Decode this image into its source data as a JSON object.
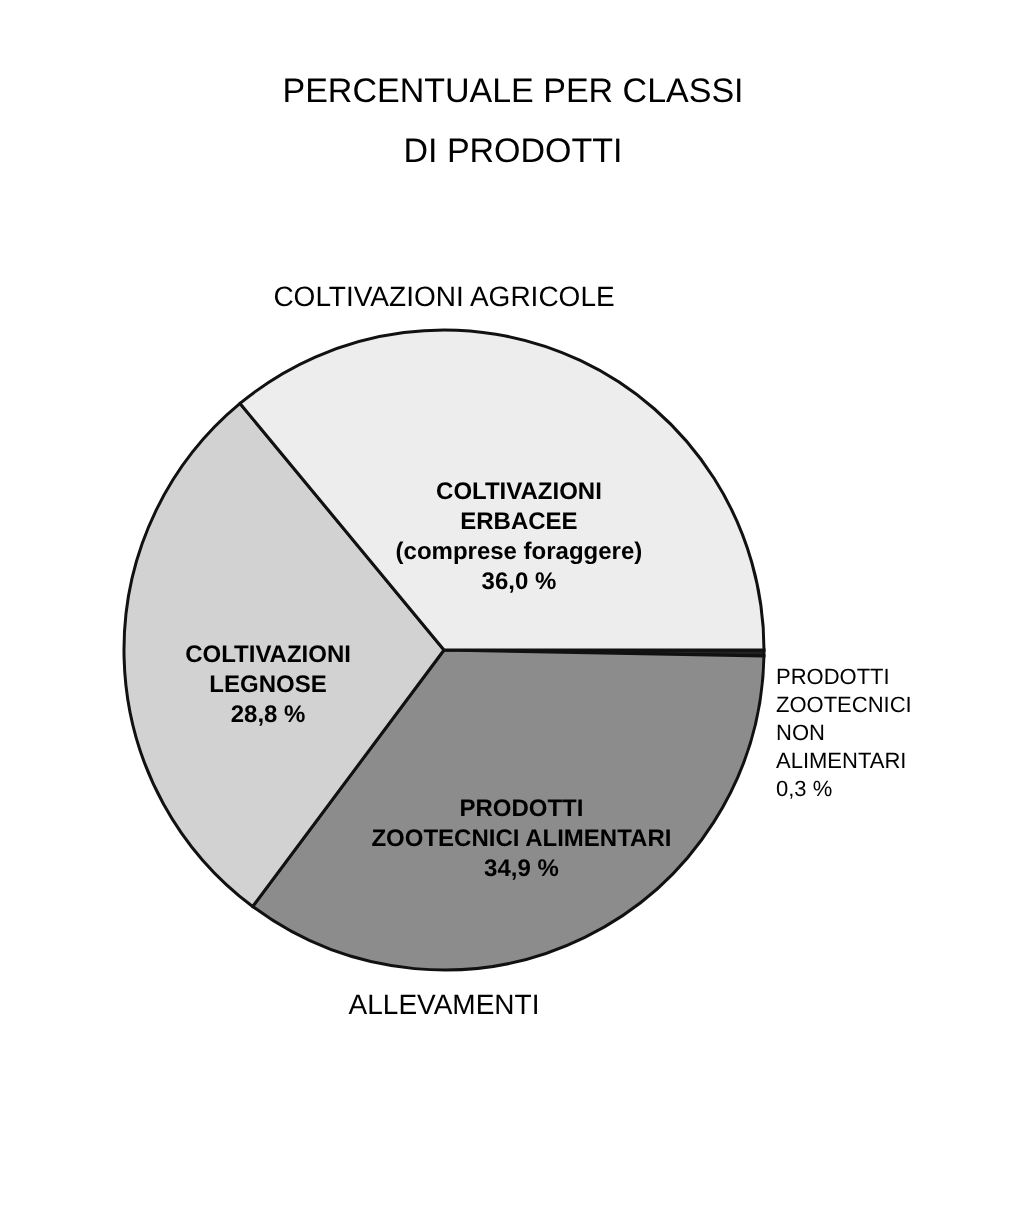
{
  "chart_data": {
    "type": "pie",
    "title": "PERCENTUALE PER CLASSI\nDI PRODOTTI",
    "categories": [
      "PRODOTTI\nZOOTECNICI\nNON\nALIMENTARI",
      "PRODOTTI\nZOOTECNICI ALIMENTARI",
      "COLTIVAZIONI\nLEGNOSE",
      "COLTIVAZIONI\nERBACEE\n(comprese foraggere)"
    ],
    "values": [
      0.3,
      34.9,
      28.8,
      36.0
    ],
    "value_labels": [
      "0,3 %",
      "34,9 %",
      "28,8 %",
      "36,0 %"
    ],
    "colors": [
      "#222222",
      "#8c8c8c",
      "#d2d2d2",
      "#ededed"
    ],
    "annotations": [
      "COLTIVAZIONI AGRICOLE",
      "ALLEVAMENTI"
    ]
  }
}
